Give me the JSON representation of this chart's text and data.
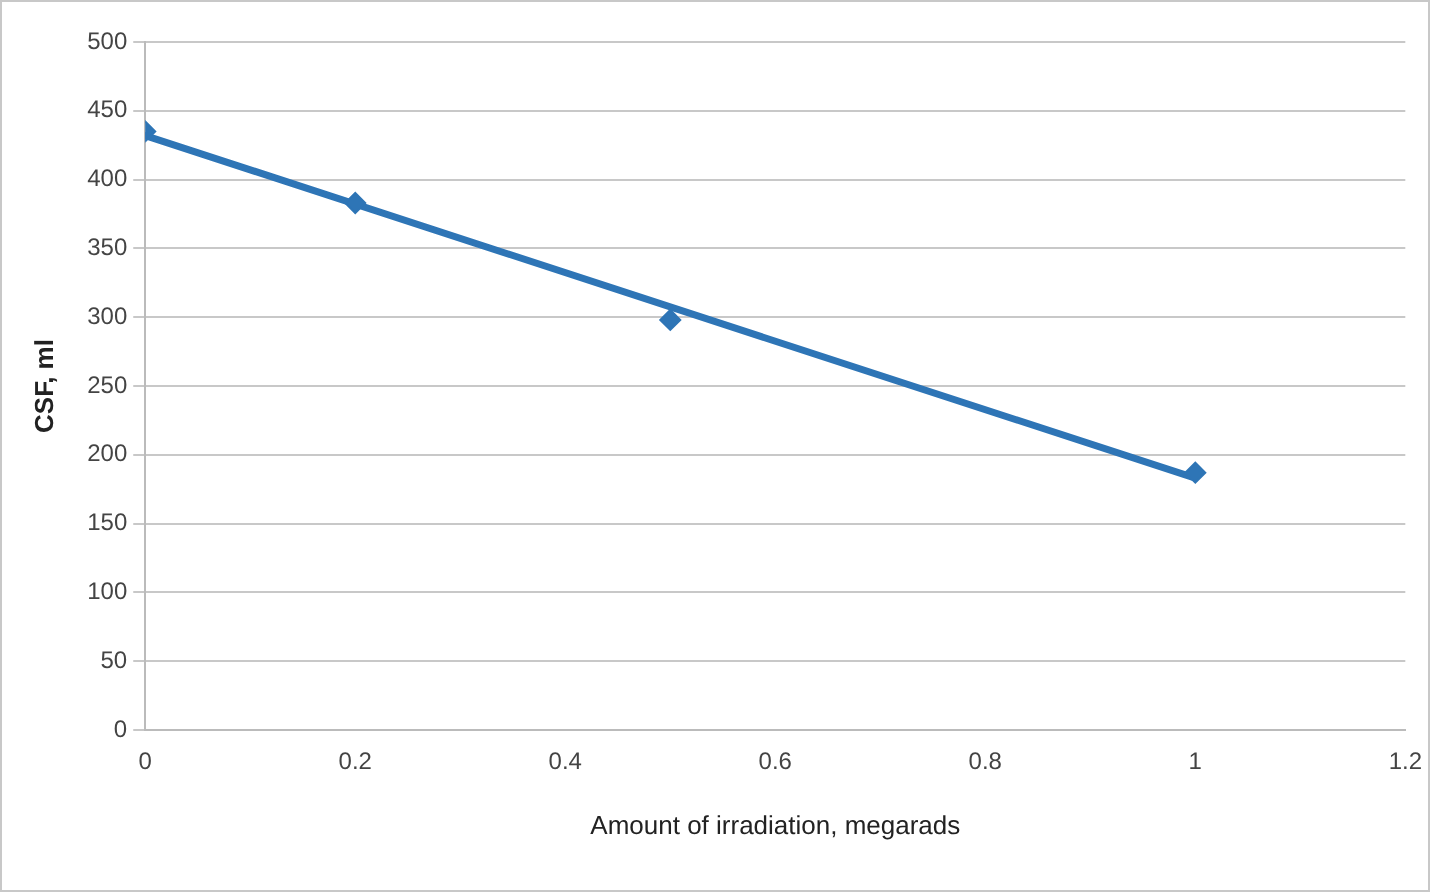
{
  "chart_data": {
    "type": "scatter",
    "xlabel": "Amount of irradiation, megarads",
    "ylabel": "CSF, ml",
    "xlim": [
      0,
      1.2
    ],
    "xticks": [
      0,
      0.2,
      0.4,
      0.6,
      0.8,
      1,
      1.2
    ],
    "ylim": [
      0,
      500
    ],
    "yticks": [
      0,
      50,
      100,
      150,
      200,
      250,
      300,
      350,
      400,
      450,
      500
    ],
    "grid": "y",
    "legend": false,
    "marker": "diamond",
    "series": [
      {
        "type": "line",
        "color": "#2e75b6",
        "x": [
          0,
          1
        ],
        "values": [
          432,
          183
        ],
        "marker": "none",
        "line_style": "solid"
      },
      {
        "type": "scatter",
        "color": "#2e75b6",
        "x": [
          0,
          0.2,
          0.5,
          1
        ],
        "values": [
          435,
          383,
          298,
          187
        ]
      }
    ]
  }
}
